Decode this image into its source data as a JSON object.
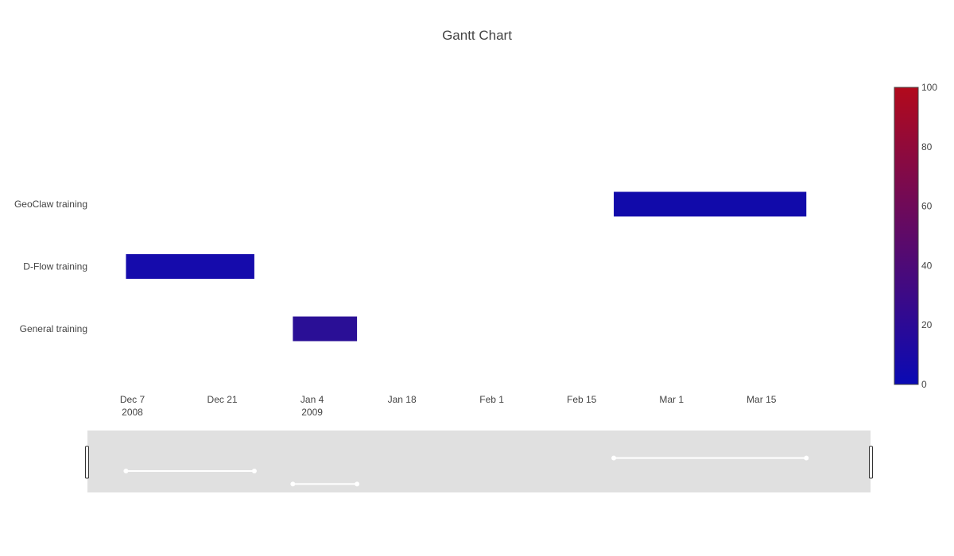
{
  "chart_data": {
    "type": "gantt",
    "title": "Gantt Chart",
    "tasks": [
      {
        "name": "General training",
        "start": "2009-01-01",
        "finish": "2009-01-11",
        "complete": 25,
        "color": "#2a0f96"
      },
      {
        "name": "D-Flow training",
        "start": "2008-12-06",
        "finish": "2008-12-26",
        "complete": 12,
        "color": "#150bac"
      },
      {
        "name": "GeoClaw training",
        "start": "2009-02-20",
        "finish": "2009-03-22",
        "complete": 10,
        "color": "#110aaa"
      }
    ],
    "y_categories": [
      "General training",
      "D-Flow training",
      "GeoClaw training"
    ],
    "x_range": [
      "2008-11-30",
      "2009-04-01"
    ],
    "x_ticks": [
      {
        "date": "2008-12-07",
        "label": "Dec 7",
        "sub": "2008"
      },
      {
        "date": "2008-12-21",
        "label": "Dec 21",
        "sub": ""
      },
      {
        "date": "2009-01-04",
        "label": "Jan 4",
        "sub": "2009"
      },
      {
        "date": "2009-01-18",
        "label": "Jan 18",
        "sub": ""
      },
      {
        "date": "2009-02-01",
        "label": "Feb 1",
        "sub": ""
      },
      {
        "date": "2009-02-15",
        "label": "Feb 15",
        "sub": ""
      },
      {
        "date": "2009-03-01",
        "label": "Mar 1",
        "sub": ""
      },
      {
        "date": "2009-03-15",
        "label": "Mar 15",
        "sub": ""
      }
    ],
    "colorbar": {
      "range": [
        0,
        100
      ],
      "ticks": [
        0,
        20,
        40,
        60,
        80,
        100
      ],
      "colors": [
        "#0a0ab4",
        "#b20a1c"
      ]
    },
    "range_slider": true,
    "grid": false
  }
}
